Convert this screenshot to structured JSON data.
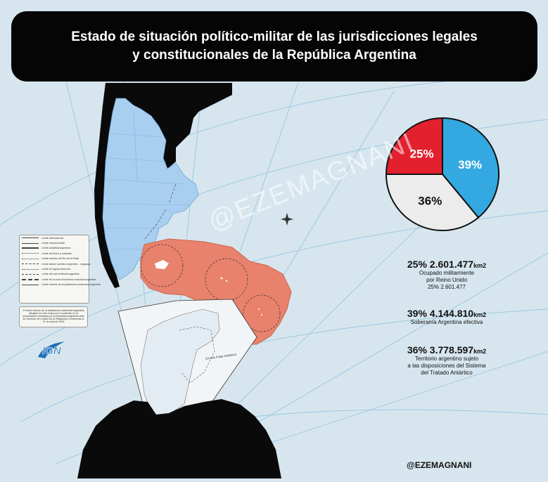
{
  "title": {
    "line1": "Estado de situación político-militar de las jurisdicciones legales",
    "line2": "y constitucionales de la República Argentina"
  },
  "pie": {
    "slices": [
      {
        "label": "39%",
        "value": 39,
        "color": "#34a8e0"
      },
      {
        "label": "36%",
        "value": 36,
        "color": "#ececec"
      },
      {
        "label": "25%",
        "value": 25,
        "color": "#e3212e"
      }
    ]
  },
  "stats": [
    {
      "headline": "25% 2.601.477",
      "unit": "km2",
      "lines": [
        "Ocupado militarmente",
        "por Reino Unido",
        "25% 2.601.477"
      ]
    },
    {
      "headline": "39% 4.144.810",
      "unit": "km2",
      "lines": [
        "Soberanía Argentina efectiva"
      ]
    },
    {
      "headline": "36% 3.778.597",
      "unit": "km2",
      "lines": [
        "Territorio argentino sujeto",
        "a las disposiciones del Sistema",
        "del Tratado Antártico"
      ]
    }
  ],
  "handle": "@EZEMAGNANI",
  "watermark": "@EZEMAGNANI",
  "legend": [
    "Límite internacional",
    "Límite interprovincial",
    "Límite Antártida Argentina",
    "Límite del lecho y subsuelo",
    "Límite exterior del Río de la Plata",
    "Límite lateral marítimo argentino - uruguayo",
    "Límite de aguas interiores",
    "Límite del mar territorial argentino",
    "Límite de la zona económica exclusiva argentina",
    "Límite exterior de la plataforma continental argentina"
  ],
  "note": [
    "El límite exterior de la plataforma continental argentina",
    "dibujado en este mapa es el contenido en la",
    "presentación realizada por la República Argentina ante",
    "la Comisión de Límites de la Plataforma Continental el",
    "21 de abril de 2009"
  ],
  "logo_text": "IGN",
  "map_label": "Círculo Polar Antártico",
  "colors": {
    "sea": "#d7e6ee",
    "land_dark": "#0a0a0a",
    "argentina": "#a9cff0",
    "occupied": "#e8826c",
    "antarctic_sector": "#f2f5f8"
  }
}
